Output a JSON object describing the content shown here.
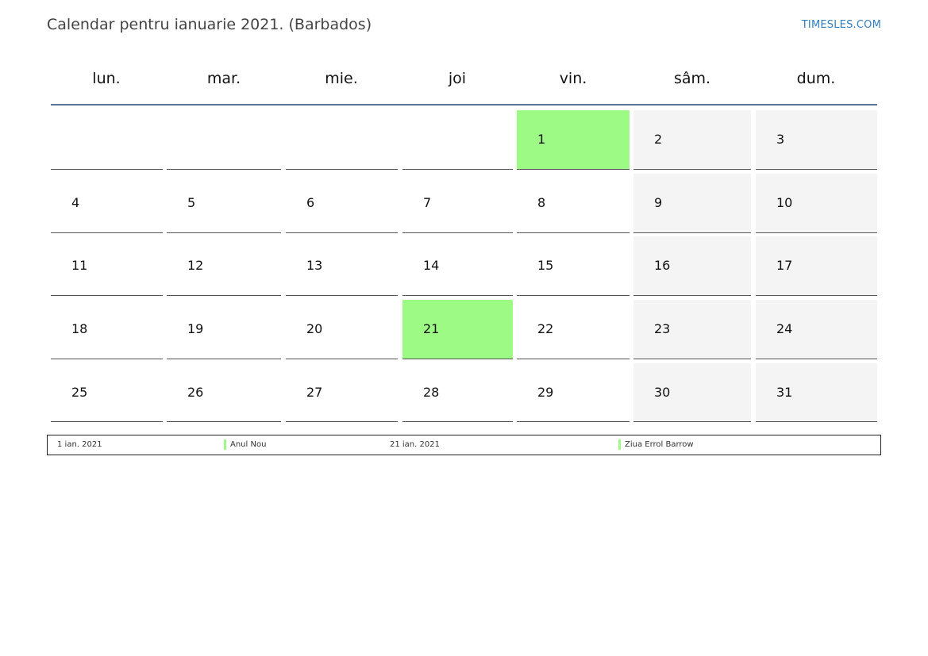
{
  "header": {
    "title": "Calendar pentru ianuarie 2021. (Barbados)",
    "site": "TIMESLES.COM"
  },
  "weekdays": [
    "lun.",
    "mar.",
    "mie.",
    "joi",
    "vin.",
    "sâm.",
    "dum."
  ],
  "colors": {
    "holiday": "#9cfa85",
    "weekend": "#f4f4f4",
    "header_rule": "#5a7396",
    "link": "#2f7fc1"
  },
  "weeks": [
    [
      null,
      null,
      null,
      null,
      {
        "day": "1",
        "holiday": true
      },
      {
        "day": "2"
      },
      {
        "day": "3"
      }
    ],
    [
      {
        "day": "4"
      },
      {
        "day": "5"
      },
      {
        "day": "6"
      },
      {
        "day": "7"
      },
      {
        "day": "8"
      },
      {
        "day": "9"
      },
      {
        "day": "10"
      }
    ],
    [
      {
        "day": "11"
      },
      {
        "day": "12"
      },
      {
        "day": "13"
      },
      {
        "day": "14"
      },
      {
        "day": "15"
      },
      {
        "day": "16"
      },
      {
        "day": "17"
      }
    ],
    [
      {
        "day": "18"
      },
      {
        "day": "19"
      },
      {
        "day": "20"
      },
      {
        "day": "21",
        "holiday": true
      },
      {
        "day": "22"
      },
      {
        "day": "23"
      },
      {
        "day": "24"
      }
    ],
    [
      {
        "day": "25"
      },
      {
        "day": "26"
      },
      {
        "day": "27"
      },
      {
        "day": "28"
      },
      {
        "day": "29"
      },
      {
        "day": "30"
      },
      {
        "day": "31"
      }
    ]
  ],
  "legend": [
    {
      "date": "1 ian. 2021",
      "name": "Anul Nou"
    },
    {
      "date": "21 ian. 2021",
      "name": "Ziua Errol Barrow"
    }
  ]
}
